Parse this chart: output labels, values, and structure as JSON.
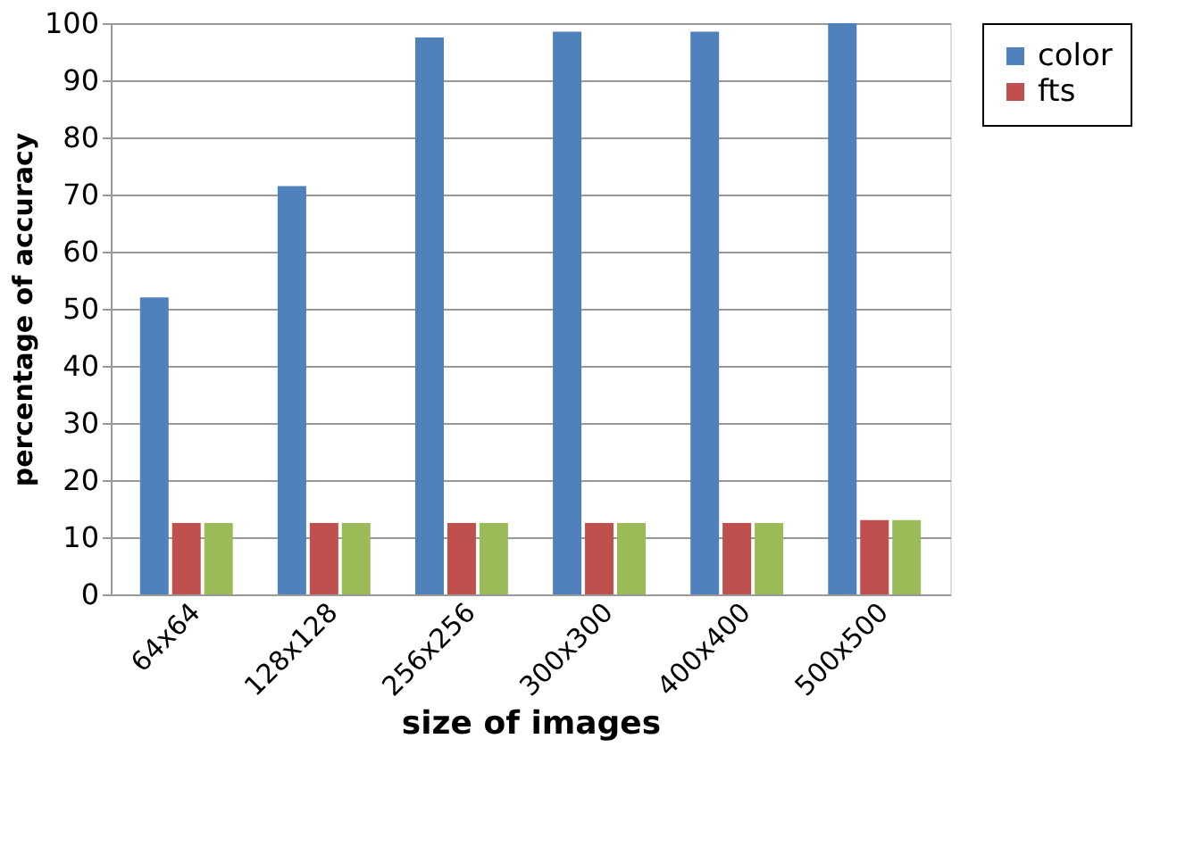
{
  "chart_data": {
    "type": "bar",
    "xlabel": "size of images",
    "ylabel": "percentage of accuracy",
    "categories": [
      "64x64",
      "128x128",
      "256x256",
      "300x300",
      "400x400",
      "500x500"
    ],
    "series": [
      {
        "name": "color",
        "color": "#4f81bd",
        "values": [
          52,
          71.5,
          97.5,
          98.5,
          98.5,
          100
        ]
      },
      {
        "name": "fts",
        "color": "#c0504d",
        "values": [
          12.5,
          12.5,
          12.5,
          12.5,
          12.5,
          13
        ]
      },
      {
        "color": "#9bbb59",
        "values": [
          12.5,
          12.5,
          12.5,
          12.5,
          12.5,
          13
        ]
      }
    ],
    "ylim": [
      0,
      100
    ],
    "yticks": [
      0,
      10,
      20,
      30,
      40,
      50,
      60,
      70,
      80,
      90,
      100
    ],
    "grid": "y",
    "legend": "right"
  }
}
